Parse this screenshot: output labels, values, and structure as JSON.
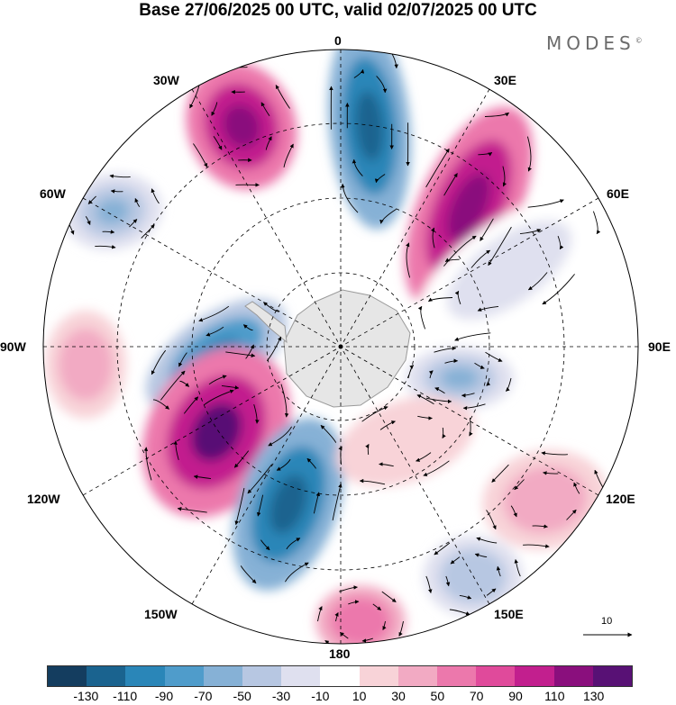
{
  "header": {
    "title": "Base 27/06/2025 00 UTC, valid 02/07/2025 00 UTC"
  },
  "brand": {
    "name": "MODES",
    "mark": "©"
  },
  "map": {
    "projection": "south-polar-stereographic",
    "longitude_labels": {
      "lon_0": "0",
      "lon_30e": "30E",
      "lon_60e": "60E",
      "lon_90e": "90E",
      "lon_120e": "120E",
      "lon_150e": "150E",
      "lon_180": "180",
      "lon_150w": "150W",
      "lon_120w": "120W",
      "lon_90w": "90W",
      "lon_60w": "60W",
      "lon_30w": "30W"
    },
    "reference_vector_label": "10",
    "palette": [
      "#143d5f",
      "#1a638f",
      "#2a86b8",
      "#4f9ccb",
      "#86b1d6",
      "#b7c7e2",
      "#dfe0ef",
      "#ffffff",
      "#f8d3d8",
      "#f2aac3",
      "#ec78ac",
      "#e04a9b",
      "#c21f8e",
      "#8a0f7d",
      "#581175"
    ]
  },
  "colorbar": {
    "ticks": [
      "-130",
      "-110",
      "-90",
      "-70",
      "-50",
      "-30",
      "-10",
      "10",
      "30",
      "50",
      "70",
      "90",
      "110",
      "130"
    ]
  }
}
